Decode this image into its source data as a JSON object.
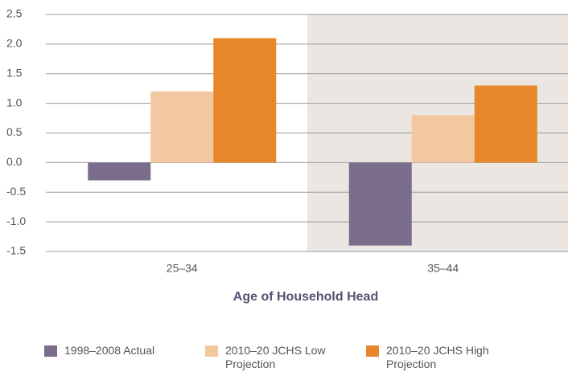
{
  "chart_data": {
    "type": "bar",
    "categories": [
      "25–34",
      "35–44"
    ],
    "series": [
      {
        "name": "1998–2008 Actual",
        "color": "#7a6e8c",
        "values": [
          -0.3,
          -1.4
        ]
      },
      {
        "name": "2010–20 JCHS Low Projection",
        "color": "#f3c8a0",
        "values": [
          1.2,
          0.8
        ]
      },
      {
        "name": "2010–20 JCHS High Projection",
        "color": "#e8862a",
        "values": [
          2.1,
          1.3
        ]
      }
    ],
    "x_label": "Age of Household Head",
    "ylim": [
      -1.5,
      2.5
    ],
    "yticks": [
      -1.5,
      {
        "value": -1,
        "label": "-1.0"
      },
      -0.5,
      {
        "value": 0,
        "label": "0.0"
      },
      0.5,
      {
        "value": 1,
        "label": "1.0"
      },
      1.5,
      {
        "value": 2,
        "label": "2.0"
      },
      2.5
    ],
    "grid": true
  }
}
